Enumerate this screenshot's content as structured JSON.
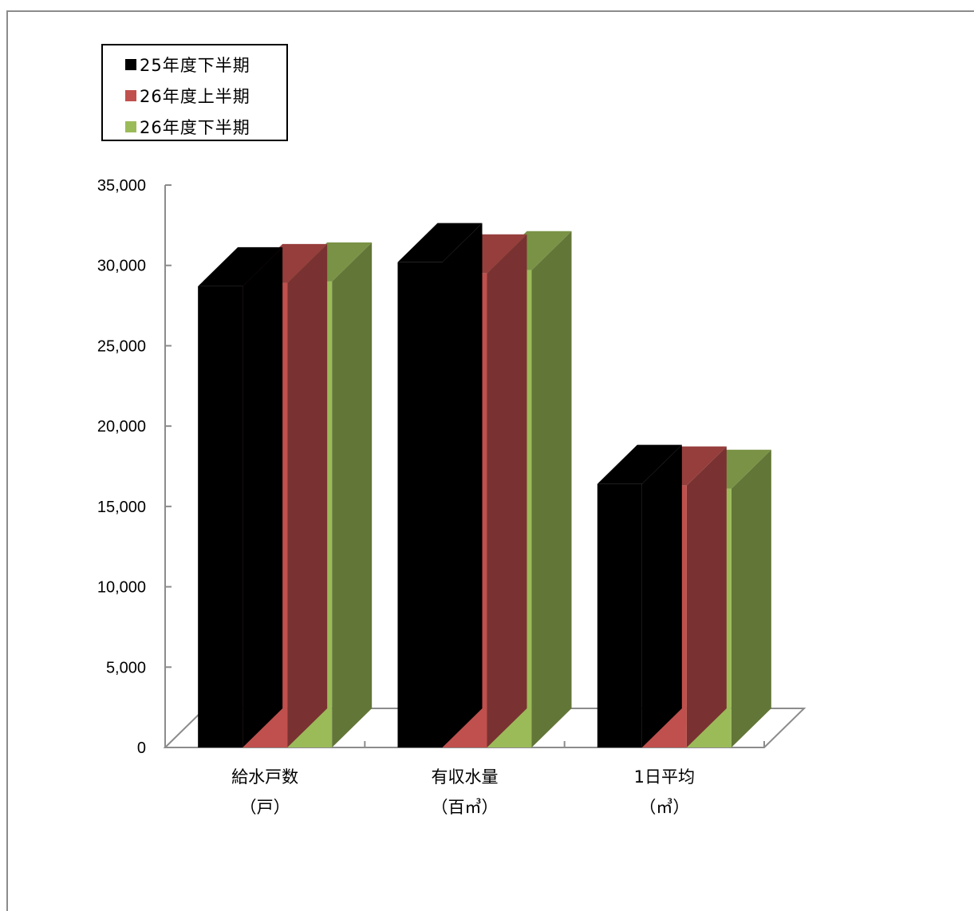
{
  "chart_data": {
    "type": "bar",
    "style": "3d-clustered-column",
    "categories": [
      [
        "給水戸数",
        "（戸）"
      ],
      [
        "有収水量",
        "（百㎥）"
      ],
      [
        "1日平均",
        "（㎥）"
      ]
    ],
    "series": [
      {
        "name": "25年度下半期",
        "values": [
          28700,
          30200,
          16400
        ],
        "color": "#000000"
      },
      {
        "name": "26年度上半期",
        "values": [
          28900,
          29500,
          16300
        ],
        "color": "#c0504d"
      },
      {
        "name": "26年度下半期",
        "values": [
          29000,
          29700,
          16100
        ],
        "color": "#9bbb59"
      }
    ],
    "yticks": [
      "0",
      "5,000",
      "10,000",
      "15,000",
      "20,000",
      "25,000",
      "30,000",
      "35,000"
    ],
    "ylim": [
      0,
      35000
    ],
    "grid": false,
    "legend_position": "top-left"
  }
}
